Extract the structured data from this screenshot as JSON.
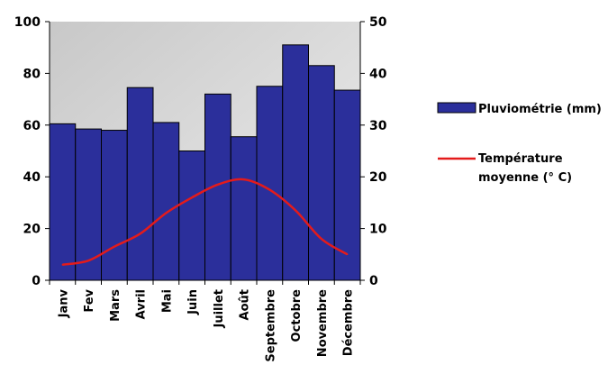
{
  "chart_data": {
    "type": "bar",
    "categories": [
      "Janv",
      "Fev",
      "Mars",
      "Avril",
      "Mai",
      "Juin",
      "Juillet",
      "Août",
      "Septembre",
      "Octobre",
      "Novembre",
      "Décembre"
    ],
    "series": [
      {
        "name": "Pluviométrie (mm)",
        "type": "bar",
        "axis": "left",
        "color": "#2b2f9b",
        "values": [
          60.5,
          58.5,
          58,
          74.5,
          61,
          50,
          72,
          55.5,
          75,
          91,
          83,
          73.5
        ]
      },
      {
        "name_lines": [
          "Température",
          "moyenne (° C)"
        ],
        "type": "line",
        "axis": "right",
        "color": "#e41b1b",
        "values": [
          3,
          3.8,
          6.5,
          9,
          13,
          16,
          18.5,
          19.5,
          17.5,
          13.5,
          8,
          5
        ]
      }
    ],
    "left_axis": {
      "ylim": [
        0,
        100
      ],
      "ticks": [
        "0",
        "20",
        "40",
        "60",
        "80",
        "100"
      ]
    },
    "right_axis": {
      "ylim": [
        0,
        50
      ],
      "ticks": [
        "0",
        "10",
        "20",
        "30",
        "40",
        "50"
      ]
    },
    "plot_background": "gradient gray",
    "legend_position": "right"
  }
}
